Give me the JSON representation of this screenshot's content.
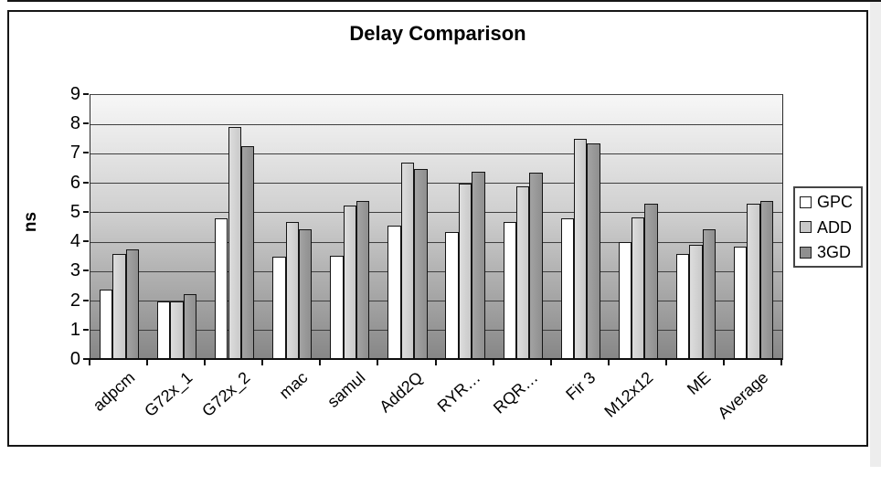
{
  "page": {
    "background": "#ffffff",
    "right_strip_color": "#ededed"
  },
  "chart_data": {
    "type": "bar",
    "title": "Delay Comparison",
    "ylabel": "ns",
    "xlabel": "",
    "ylim": [
      0,
      9
    ],
    "ytick_step": 1,
    "ytick_labels": [
      "0",
      "1",
      "2",
      "3",
      "4",
      "5",
      "6",
      "7",
      "8",
      "9"
    ],
    "grid": true,
    "legend_position": "right",
    "plot_bg_gradient_top": "#f7f7f7",
    "plot_bg_gradient_bottom": "#868686",
    "gridline_color": "#3f3f3f",
    "categories": [
      "adpcm",
      "G72x_1",
      "G72x_2",
      "mac",
      "samul",
      "Add2Q",
      "RYR…",
      "RQR…",
      "Fir 3",
      "M12x12",
      "ME",
      "Average"
    ],
    "series": [
      {
        "name": "GPC",
        "color": "#ffffff",
        "values": [
          2.4,
          2.0,
          4.8,
          3.5,
          3.55,
          4.55,
          4.35,
          4.7,
          4.8,
          4.0,
          3.6,
          3.85
        ]
      },
      {
        "name": "ADD",
        "color": "#c9c9c9",
        "values": [
          3.6,
          2.0,
          7.9,
          4.7,
          5.25,
          6.7,
          6.0,
          5.9,
          7.5,
          4.85,
          3.9,
          5.3
        ]
      },
      {
        "name": "3GD",
        "color": "#8f8f8f",
        "values": [
          3.75,
          2.25,
          7.25,
          4.45,
          5.4,
          6.5,
          6.4,
          6.35,
          7.35,
          5.3,
          4.45,
          5.4
        ]
      }
    ]
  }
}
